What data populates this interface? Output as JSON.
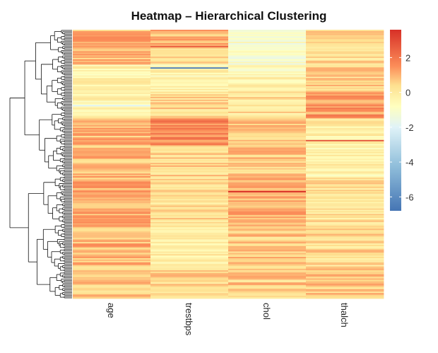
{
  "chart_data": {
    "type": "heatmap",
    "title": "Heatmap – Hierarchical Clustering",
    "columns": [
      "age",
      "trestbps",
      "chol",
      "thalch"
    ],
    "row_count": 200,
    "color_scale": {
      "min": -6.8,
      "max": 3.6,
      "stops": [
        {
          "value": -6.8,
          "color": "#4575b4"
        },
        {
          "value": -4.2,
          "color": "#91bfdb"
        },
        {
          "value": -2.0,
          "color": "#e0f3f8"
        },
        {
          "value": -0.8,
          "color": "#ffffbf"
        },
        {
          "value": 0.4,
          "color": "#fee090"
        },
        {
          "value": 1.5,
          "color": "#fc8d59"
        },
        {
          "value": 3.6,
          "color": "#d73027"
        }
      ]
    },
    "legend": {
      "position": "right",
      "ticks": [
        2,
        0,
        -2,
        -4,
        -6
      ],
      "tick_labels": [
        "2",
        "0",
        "-2",
        "-4",
        "-6"
      ]
    },
    "dendrogram": {
      "side": "left",
      "type": "row clustering"
    },
    "cluster_profile": [
      {
        "row_fraction": [
          0.0,
          0.06
        ],
        "column_means": [
          1.0,
          0.9,
          -1.0,
          0.6
        ]
      },
      {
        "row_fraction": [
          0.06,
          0.13
        ],
        "column_means": [
          0.8,
          0.3,
          -1.0,
          0.3
        ]
      },
      {
        "row_fraction": [
          0.13,
          0.23
        ],
        "column_means": [
          -0.3,
          -0.4,
          -0.5,
          0.5
        ]
      },
      {
        "row_fraction": [
          0.23,
          0.33
        ],
        "column_means": [
          -0.4,
          0.4,
          0.2,
          1.4
        ]
      },
      {
        "row_fraction": [
          0.33,
          0.43
        ],
        "column_means": [
          0.9,
          1.7,
          0.6,
          -0.2
        ]
      },
      {
        "row_fraction": [
          0.43,
          0.55
        ],
        "column_means": [
          0.8,
          0.5,
          0.7,
          -0.3
        ]
      },
      {
        "row_fraction": [
          0.55,
          0.72
        ],
        "column_means": [
          1.1,
          0.3,
          0.9,
          0.2
        ]
      },
      {
        "row_fraction": [
          0.72,
          0.88
        ],
        "column_means": [
          0.9,
          -0.2,
          0.6,
          0.4
        ]
      },
      {
        "row_fraction": [
          0.88,
          1.0
        ],
        "column_means": [
          0.7,
          0.4,
          0.6,
          0.7
        ]
      }
    ],
    "notable_values": [
      {
        "row_fraction": 0.145,
        "column": "trestbps",
        "value": -6.5
      },
      {
        "row_fraction": 0.06,
        "column": "trestbps",
        "value": 2.6
      },
      {
        "row_fraction": 0.6,
        "column": "chol",
        "value": 3.5
      },
      {
        "row_fraction": 0.41,
        "column": "thalch",
        "value": 2.8
      },
      {
        "row_fraction": 0.285,
        "column": "age",
        "value": -2.0
      }
    ]
  }
}
